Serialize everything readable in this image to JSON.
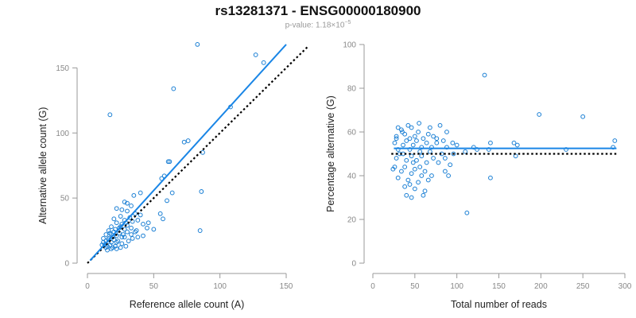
{
  "header": {
    "title": "rs13281371 - ENSG00000180900",
    "subtitle_prefix": "p-value: 1.18×10",
    "subtitle_exponent": "−5"
  },
  "colors": {
    "points": "#1a7fd4",
    "fit_line": "#1a86e6",
    "reference_line": "#000000",
    "axis": "#999999",
    "tick_text": "#888888"
  },
  "chart_data": [
    {
      "type": "scatter",
      "xlabel": "Reference allele count (A)",
      "ylabel": "Alternative allele count (G)",
      "xlim": [
        0,
        150
      ],
      "ylim": [
        0,
        160
      ],
      "xticks": [
        0,
        50,
        100,
        150
      ],
      "yticks": [
        0,
        50,
        100,
        150
      ],
      "fit_line": {
        "x": [
          2,
          150
        ],
        "y": [
          2,
          168
        ]
      },
      "reference_line": {
        "x": [
          0,
          166
        ],
        "y": [
          0,
          166
        ]
      },
      "points": [
        [
          17,
          114
        ],
        [
          83,
          168
        ],
        [
          127,
          160
        ],
        [
          133,
          154
        ],
        [
          65,
          134
        ],
        [
          108,
          120
        ],
        [
          76,
          94
        ],
        [
          73,
          93
        ],
        [
          87,
          85
        ],
        [
          61,
          78
        ],
        [
          62,
          78
        ],
        [
          58,
          67
        ],
        [
          56,
          65
        ],
        [
          86,
          55
        ],
        [
          85,
          25
        ],
        [
          55,
          38
        ],
        [
          57,
          34
        ],
        [
          64,
          54
        ],
        [
          60,
          48
        ],
        [
          40,
          54
        ],
        [
          35,
          52
        ],
        [
          30,
          46
        ],
        [
          28,
          47
        ],
        [
          33,
          44
        ],
        [
          22,
          42
        ],
        [
          26,
          41
        ],
        [
          30,
          40
        ],
        [
          36,
          38
        ],
        [
          40,
          37
        ],
        [
          25,
          36
        ],
        [
          32,
          35
        ],
        [
          20,
          34
        ],
        [
          28,
          33
        ],
        [
          34,
          32
        ],
        [
          22,
          31
        ],
        [
          26,
          30
        ],
        [
          30,
          29
        ],
        [
          18,
          28
        ],
        [
          24,
          27
        ],
        [
          28,
          26
        ],
        [
          16,
          25
        ],
        [
          20,
          24
        ],
        [
          24,
          23
        ],
        [
          14,
          22
        ],
        [
          18,
          22
        ],
        [
          22,
          21
        ],
        [
          26,
          20
        ],
        [
          12,
          19
        ],
        [
          16,
          19
        ],
        [
          20,
          18
        ],
        [
          14,
          17
        ],
        [
          18,
          16
        ],
        [
          22,
          16
        ],
        [
          26,
          15
        ],
        [
          13,
          14
        ],
        [
          17,
          14
        ],
        [
          21,
          13
        ],
        [
          14,
          12
        ],
        [
          18,
          11
        ],
        [
          22,
          11
        ],
        [
          15,
          10
        ],
        [
          25,
          12
        ],
        [
          29,
          13
        ],
        [
          33,
          22
        ],
        [
          36,
          24
        ],
        [
          38,
          20
        ],
        [
          42,
          21
        ],
        [
          45,
          27
        ],
        [
          38,
          33
        ],
        [
          42,
          30
        ],
        [
          30,
          24
        ],
        [
          27,
          22
        ],
        [
          19,
          20
        ],
        [
          16,
          18
        ],
        [
          12,
          16
        ],
        [
          11,
          14
        ],
        [
          15,
          13
        ],
        [
          19,
          12
        ],
        [
          23,
          17
        ],
        [
          28,
          20
        ],
        [
          31,
          17
        ],
        [
          34,
          19
        ],
        [
          37,
          25
        ],
        [
          46,
          31
        ],
        [
          50,
          26
        ],
        [
          21,
          26
        ],
        [
          17,
          23
        ],
        [
          25,
          28
        ],
        [
          29,
          31
        ],
        [
          33,
          27
        ]
      ]
    },
    {
      "type": "scatter",
      "xlabel": "Total number of reads",
      "ylabel": "Percentage alternative (G)",
      "xlim": [
        0,
        300
      ],
      "ylim": [
        0,
        100
      ],
      "xticks": [
        0,
        50,
        100,
        150,
        200,
        250,
        300
      ],
      "yticks": [
        0,
        20,
        40,
        60,
        80,
        100
      ],
      "fit_line": {
        "x": [
          25,
          290
        ],
        "y": [
          52.5,
          52.5
        ]
      },
      "reference_line": {
        "x": [
          22,
          290
        ],
        "y": [
          50,
          50
        ]
      },
      "points": [
        [
          133,
          86
        ],
        [
          198,
          68
        ],
        [
          250,
          67
        ],
        [
          112,
          23
        ],
        [
          30,
          62
        ],
        [
          35,
          60
        ],
        [
          42,
          63
        ],
        [
          46,
          62
        ],
        [
          55,
          64
        ],
        [
          68,
          62
        ],
        [
          80,
          63
        ],
        [
          88,
          60
        ],
        [
          38,
          59
        ],
        [
          50,
          58
        ],
        [
          60,
          57
        ],
        [
          72,
          58
        ],
        [
          84,
          56
        ],
        [
          28,
          57
        ],
        [
          40,
          56
        ],
        [
          52,
          56
        ],
        [
          64,
          55
        ],
        [
          76,
          55
        ],
        [
          95,
          55
        ],
        [
          26,
          55
        ],
        [
          36,
          54
        ],
        [
          48,
          54
        ],
        [
          58,
          53
        ],
        [
          70,
          53
        ],
        [
          88,
          53
        ],
        [
          100,
          54
        ],
        [
          120,
          53
        ],
        [
          140,
          55
        ],
        [
          168,
          55
        ],
        [
          172,
          54
        ],
        [
          288,
          56
        ],
        [
          286,
          53
        ],
        [
          30,
          52
        ],
        [
          44,
          52
        ],
        [
          56,
          51
        ],
        [
          68,
          51
        ],
        [
          82,
          50
        ],
        [
          96,
          50
        ],
        [
          110,
          51
        ],
        [
          124,
          52
        ],
        [
          138,
          52
        ],
        [
          230,
          52
        ],
        [
          32,
          50
        ],
        [
          46,
          49
        ],
        [
          58,
          49
        ],
        [
          72,
          48
        ],
        [
          86,
          48
        ],
        [
          170,
          49
        ],
        [
          28,
          48
        ],
        [
          40,
          47
        ],
        [
          52,
          47
        ],
        [
          64,
          46
        ],
        [
          78,
          46
        ],
        [
          92,
          45
        ],
        [
          26,
          44
        ],
        [
          38,
          44
        ],
        [
          50,
          43
        ],
        [
          62,
          42
        ],
        [
          34,
          42
        ],
        [
          46,
          41
        ],
        [
          58,
          40
        ],
        [
          70,
          40
        ],
        [
          90,
          40
        ],
        [
          140,
          39
        ],
        [
          30,
          39
        ],
        [
          42,
          38
        ],
        [
          54,
          37
        ],
        [
          66,
          38
        ],
        [
          38,
          35
        ],
        [
          50,
          34
        ],
        [
          62,
          33
        ],
        [
          40,
          31
        ],
        [
          46,
          30
        ],
        [
          60,
          31
        ],
        [
          28,
          58
        ],
        [
          34,
          61
        ],
        [
          44,
          57
        ],
        [
          54,
          60
        ],
        [
          66,
          59
        ],
        [
          76,
          57
        ],
        [
          36,
          50
        ],
        [
          48,
          46
        ],
        [
          56,
          44
        ],
        [
          86,
          42
        ],
        [
          24,
          43
        ],
        [
          44,
          36
        ]
      ]
    }
  ]
}
